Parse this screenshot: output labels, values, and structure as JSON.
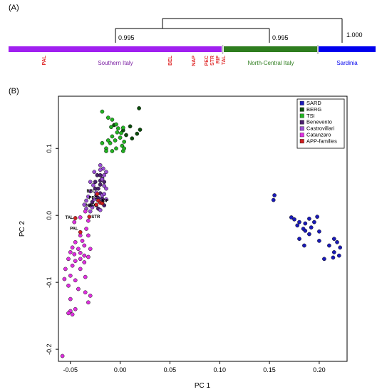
{
  "panel_a": {
    "label": "(A)",
    "dendrogram_support": [
      {
        "id": "node-1",
        "value": "0.995"
      },
      {
        "id": "node-2",
        "value": "0.995"
      },
      {
        "id": "node-3",
        "value": "1.000"
      }
    ],
    "bands": [
      {
        "id": "southern",
        "label": "Southern Italy",
        "color": "#a020f0",
        "label_color": "#7b1fa2"
      },
      {
        "id": "north-central",
        "label": "North-Central Italy",
        "color": "#2e7d1e",
        "label_color": "#2e7d1e"
      },
      {
        "id": "sardinia",
        "label": "Sardinia",
        "color": "#0000ee",
        "label_color": "#0000ee"
      }
    ],
    "family_labels": [
      "PAL",
      "BEL",
      "NAP",
      "PEC",
      "STR",
      "RIF",
      "TAL"
    ],
    "family_label_color": "#e03030"
  },
  "panel_b": {
    "label": "(B)"
  },
  "chart_data": {
    "type": "scatter",
    "xlabel": "PC 1",
    "ylabel": "PC 2",
    "xlim": [
      -0.062,
      0.228
    ],
    "ylim": [
      -0.218,
      0.178
    ],
    "x_ticks": [
      -0.05,
      0.0,
      0.05,
      0.1,
      0.15,
      0.2
    ],
    "x_tick_labels": [
      "-0.05",
      "0.00",
      "0.05",
      "0.10",
      "0.15",
      "0.20"
    ],
    "y_ticks": [
      -0.2,
      -0.1,
      0.0,
      0.1
    ],
    "y_tick_labels": [
      "-0.2",
      "-0.1",
      "0.0",
      "0.1"
    ],
    "grid": false,
    "legend_position": "top-right",
    "series": [
      {
        "name": "SARD",
        "color": "#1a1ab8",
        "points": [
          [
            0.155,
            0.03
          ],
          [
            0.154,
            0.023
          ],
          [
            0.172,
            -0.003
          ],
          [
            0.175,
            -0.006
          ],
          [
            0.18,
            -0.01
          ],
          [
            0.178,
            -0.015
          ],
          [
            0.184,
            -0.02
          ],
          [
            0.186,
            -0.012
          ],
          [
            0.19,
            -0.005
          ],
          [
            0.192,
            -0.018
          ],
          [
            0.195,
            -0.01
          ],
          [
            0.198,
            -0.002
          ],
          [
            0.186,
            -0.023
          ],
          [
            0.18,
            -0.035
          ],
          [
            0.19,
            -0.028
          ],
          [
            0.185,
            -0.045
          ],
          [
            0.2,
            -0.024
          ],
          [
            0.2,
            -0.038
          ],
          [
            0.21,
            -0.045
          ],
          [
            0.215,
            -0.035
          ],
          [
            0.218,
            -0.04
          ],
          [
            0.221,
            -0.048
          ],
          [
            0.215,
            -0.055
          ],
          [
            0.22,
            -0.06
          ],
          [
            0.205,
            -0.065
          ],
          [
            0.214,
            -0.063
          ]
        ]
      },
      {
        "name": "BERG",
        "color": "#0b4d0b",
        "points": [
          [
            0.01,
            0.133
          ],
          [
            0.003,
            0.127
          ],
          [
            0.006,
            0.12
          ],
          [
            0.012,
            0.115
          ],
          [
            0.019,
            0.16
          ],
          [
            0.02,
            0.128
          ],
          [
            0.017,
            0.122
          ],
          [
            -0.006,
            0.135
          ]
        ]
      },
      {
        "name": "TSI",
        "color": "#22b422",
        "points": [
          [
            -0.018,
            0.155
          ],
          [
            -0.012,
            0.146
          ],
          [
            -0.008,
            0.143
          ],
          [
            -0.004,
            0.136
          ],
          [
            -0.009,
            0.132
          ],
          [
            -0.002,
            0.13
          ],
          [
            0.003,
            0.131
          ],
          [
            0.001,
            0.123
          ],
          [
            -0.003,
            0.124
          ],
          [
            -0.008,
            0.118
          ],
          [
            -0.012,
            0.112
          ],
          [
            -0.014,
            0.1
          ],
          [
            -0.01,
            0.108
          ],
          [
            -0.005,
            0.112
          ],
          [
            0.0,
            0.116
          ],
          [
            0.004,
            0.11
          ],
          [
            0.002,
            0.104
          ],
          [
            -0.004,
            0.1
          ],
          [
            -0.008,
            0.096
          ],
          [
            -0.014,
            0.096
          ],
          [
            -0.018,
            0.108
          ],
          [
            0.003,
            0.096
          ],
          [
            0.004,
            0.1
          ]
        ]
      },
      {
        "name": "Benevento",
        "color": "#4b1f6e",
        "points": [
          [
            -0.023,
            0.06
          ],
          [
            -0.02,
            0.06
          ],
          [
            -0.018,
            0.055
          ],
          [
            -0.025,
            0.05
          ],
          [
            -0.02,
            0.052
          ],
          [
            -0.016,
            0.05
          ],
          [
            -0.02,
            0.046
          ],
          [
            -0.025,
            0.04
          ],
          [
            -0.022,
            0.04
          ],
          [
            -0.02,
            0.033
          ],
          [
            -0.024,
            0.03
          ],
          [
            -0.022,
            0.026
          ],
          [
            -0.018,
            0.025
          ],
          [
            -0.028,
            0.02
          ],
          [
            -0.018,
            0.02
          ],
          [
            -0.03,
            0.015
          ],
          [
            -0.024,
            0.015
          ],
          [
            -0.016,
            0.015
          ],
          [
            -0.022,
            0.01
          ]
        ]
      },
      {
        "name": "Castrovillari",
        "color": "#9a4fd4",
        "points": [
          [
            -0.02,
            0.075
          ],
          [
            -0.017,
            0.07
          ],
          [
            -0.02,
            0.068
          ],
          [
            -0.014,
            0.065
          ],
          [
            -0.026,
            0.065
          ],
          [
            -0.016,
            0.06
          ],
          [
            -0.018,
            0.054
          ],
          [
            -0.03,
            0.05
          ],
          [
            -0.027,
            0.045
          ],
          [
            -0.016,
            0.044
          ],
          [
            -0.014,
            0.04
          ],
          [
            -0.03,
            0.036
          ],
          [
            -0.024,
            0.034
          ],
          [
            -0.018,
            0.03
          ],
          [
            -0.032,
            0.028
          ],
          [
            -0.026,
            0.024
          ],
          [
            -0.02,
            0.02
          ],
          [
            -0.034,
            0.022
          ],
          [
            -0.036,
            0.016
          ],
          [
            -0.028,
            0.012
          ],
          [
            -0.02,
            0.008
          ],
          [
            -0.03,
            0.006
          ],
          [
            -0.014,
            0.024
          ],
          [
            -0.016,
            0.032
          ],
          [
            -0.034,
            0.01
          ]
        ]
      },
      {
        "name": "Catanzaro",
        "color": "#e030e0",
        "points": [
          [
            -0.035,
            0.006
          ],
          [
            -0.04,
            -0.003
          ],
          [
            -0.046,
            -0.01
          ],
          [
            -0.032,
            -0.008
          ],
          [
            -0.034,
            -0.02
          ],
          [
            -0.04,
            -0.03
          ],
          [
            -0.032,
            -0.03
          ],
          [
            -0.038,
            -0.038
          ],
          [
            -0.045,
            -0.04
          ],
          [
            -0.036,
            -0.045
          ],
          [
            -0.042,
            -0.05
          ],
          [
            -0.048,
            -0.048
          ],
          [
            -0.03,
            -0.05
          ],
          [
            -0.04,
            -0.056
          ],
          [
            -0.046,
            -0.058
          ],
          [
            -0.036,
            -0.06
          ],
          [
            -0.05,
            -0.055
          ],
          [
            -0.032,
            -0.062
          ],
          [
            -0.04,
            -0.065
          ],
          [
            -0.045,
            -0.068
          ],
          [
            -0.052,
            -0.065
          ],
          [
            -0.036,
            -0.07
          ],
          [
            -0.048,
            -0.075
          ],
          [
            -0.055,
            -0.08
          ],
          [
            -0.04,
            -0.08
          ],
          [
            -0.05,
            -0.09
          ],
          [
            -0.045,
            -0.097
          ],
          [
            -0.052,
            -0.105
          ],
          [
            -0.042,
            -0.11
          ],
          [
            -0.03,
            -0.12
          ],
          [
            -0.035,
            -0.115
          ],
          [
            -0.032,
            -0.13
          ],
          [
            -0.045,
            -0.14
          ],
          [
            -0.05,
            -0.143
          ],
          [
            -0.048,
            -0.148
          ],
          [
            -0.052,
            -0.146
          ],
          [
            -0.058,
            -0.21
          ],
          [
            -0.035,
            -0.092
          ],
          [
            -0.05,
            -0.125
          ],
          [
            -0.056,
            -0.095
          ]
        ]
      },
      {
        "name": "APP-families",
        "color": "#d02020",
        "points": [
          [
            -0.023,
            0.032
          ],
          [
            -0.022,
            0.022
          ],
          [
            -0.02,
            0.019
          ],
          [
            -0.024,
            0.016
          ],
          [
            -0.018,
            0.018
          ],
          [
            -0.045,
            -0.004
          ],
          [
            -0.031,
            -0.002
          ],
          [
            -0.04,
            -0.025
          ]
        ]
      }
    ],
    "annotations": [
      {
        "text": "PAL",
        "x": -0.04,
        "y": -0.025
      },
      {
        "text": "TAL",
        "x": -0.045,
        "y": -0.004
      },
      {
        "text": "STR",
        "x": -0.031,
        "y": -0.002
      },
      {
        "text": "NAP",
        "x": -0.024,
        "y": 0.016
      },
      {
        "text": "PEC",
        "x": -0.022,
        "y": 0.022
      },
      {
        "text": "RIF",
        "x": -0.02,
        "y": 0.019
      },
      {
        "text": "BEL",
        "x": -0.023,
        "y": 0.032
      }
    ]
  }
}
